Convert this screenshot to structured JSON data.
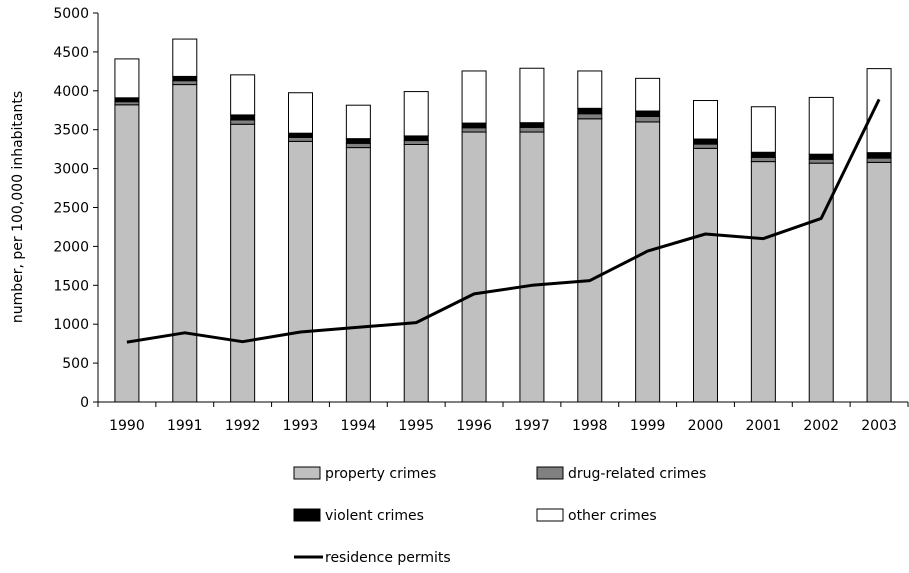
{
  "chart_data": {
    "type": "bar",
    "stacked": true,
    "categories": [
      "1990",
      "1991",
      "1992",
      "1993",
      "1994",
      "1995",
      "1996",
      "1997",
      "1998",
      "1999",
      "2000",
      "2001",
      "2002",
      "2003"
    ],
    "ylabel": "number, per 100,000 inhabitants",
    "xlabel": "",
    "ylim": [
      0,
      5000
    ],
    "yticks": [
      0,
      500,
      1000,
      1500,
      2000,
      2500,
      3000,
      3500,
      4000,
      4500,
      5000
    ],
    "grid": false,
    "legend_position": "bottom",
    "series": [
      {
        "name": "property crimes",
        "kind": "bar",
        "color": "#c0c0c0",
        "values": [
          3820,
          4080,
          3570,
          3350,
          3270,
          3310,
          3470,
          3470,
          3640,
          3600,
          3260,
          3090,
          3070,
          3080
        ]
      },
      {
        "name": "drug-related crimes",
        "kind": "bar",
        "color": "#808080",
        "values": [
          40,
          50,
          55,
          50,
          55,
          50,
          55,
          60,
          65,
          70,
          55,
          55,
          50,
          55
        ]
      },
      {
        "name": "violent crimes",
        "kind": "bar",
        "color": "#000000",
        "values": [
          50,
          55,
          65,
          55,
          60,
          60,
          60,
          60,
          70,
          70,
          65,
          65,
          65,
          70
        ]
      },
      {
        "name": "other crimes",
        "kind": "bar",
        "color": "#ffffff",
        "values": [
          500,
          480,
          515,
          520,
          430,
          570,
          670,
          700,
          480,
          420,
          495,
          585,
          730,
          1080
        ]
      },
      {
        "name": "residence permits",
        "kind": "line",
        "color": "#000000",
        "values": [
          770,
          890,
          775,
          900,
          960,
          1020,
          1390,
          1500,
          1560,
          1940,
          2160,
          2100,
          2360,
          3890
        ]
      }
    ]
  }
}
